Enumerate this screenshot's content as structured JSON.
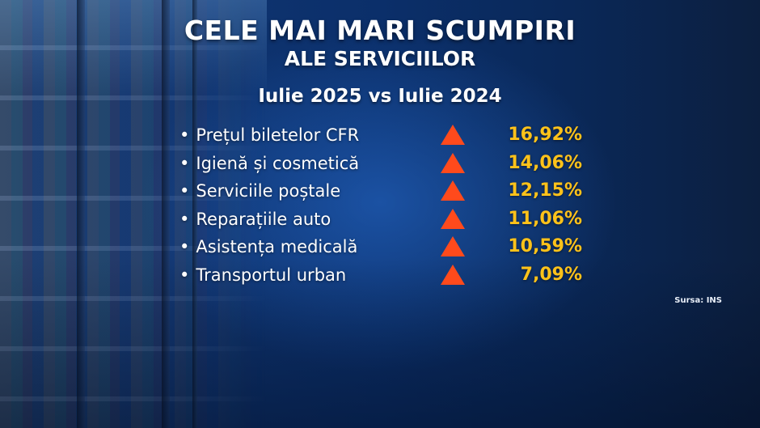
{
  "title": "CELE MAI MARI SCUMPIRI",
  "subtitle": "ALE SERVICIILOR",
  "period": "Iulie 2025 vs Iulie 2024",
  "accent_colors": {
    "triangle": "#ff4a1c",
    "percent": "#ffc21a"
  },
  "items": [
    {
      "label": "Prețul biletelor CFR",
      "value": "16,92%",
      "icon": "up-triangle-icon"
    },
    {
      "label": "Igienă și cosmetică",
      "value": "14,06%",
      "icon": "up-triangle-icon"
    },
    {
      "label": "Serviciile poștale",
      "value": "12,15%",
      "icon": "up-triangle-icon"
    },
    {
      "label": "Reparațiile auto",
      "value": "11,06%",
      "icon": "up-triangle-icon"
    },
    {
      "label": "Asistența medicală",
      "value": "10,59%",
      "icon": "up-triangle-icon"
    },
    {
      "label": "Transportul urban",
      "value": "7,09%",
      "icon": "up-triangle-icon"
    }
  ],
  "source": "Sursa: INS"
}
